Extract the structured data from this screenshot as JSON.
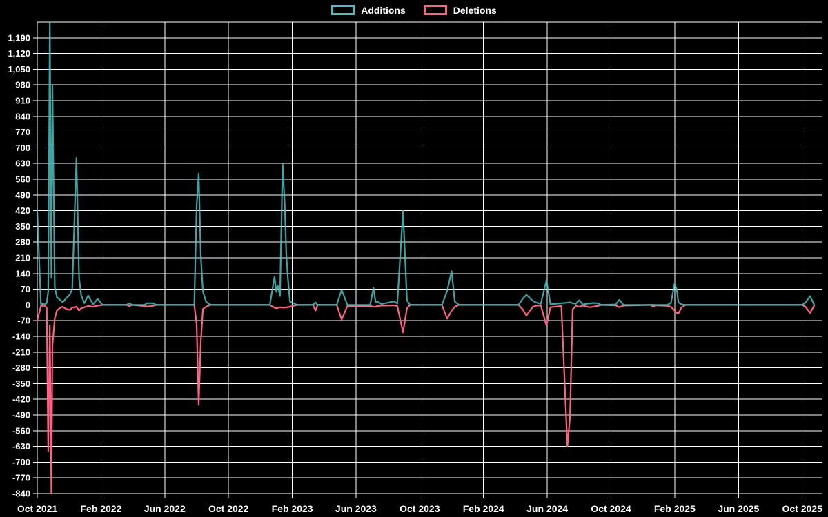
{
  "page": {
    "background": "#000000",
    "text_color": "#ffffff",
    "grid_color": "#ffffff"
  },
  "legend": {
    "items": [
      {
        "label": "Additions",
        "color": "#4bc0c0"
      },
      {
        "label": "Deletions",
        "color": "#ff6384"
      }
    ]
  },
  "chart_data": {
    "type": "line",
    "title": "",
    "xlabel": "",
    "ylabel": "",
    "legend_position": "top-center",
    "grid": true,
    "background": "#000000",
    "y_range": [
      -840,
      1260
    ],
    "y_step": 70,
    "y_ticks": [
      "1,190",
      "1,120",
      "1,050",
      "980",
      "910",
      "840",
      "770",
      "700",
      "630",
      "560",
      "490",
      "420",
      "350",
      "280",
      "210",
      "140",
      "70",
      "0",
      "-70",
      "-140",
      "-210",
      "-280",
      "-350",
      "-420",
      "-490",
      "-560",
      "-630",
      "-700",
      "-770",
      "-840"
    ],
    "x_ticks": [
      "Oct 2021",
      "Feb 2022",
      "Jun 2022",
      "Oct 2022",
      "Feb 2023",
      "Jun 2023",
      "Oct 2023",
      "Feb 2024",
      "Jun 2024",
      "Oct 2024",
      "Feb 2025",
      "Jun 2025",
      "Oct 2025"
    ],
    "series": [
      {
        "name": "Additions",
        "color": "#4bc0c0"
      },
      {
        "name": "Deletions",
        "color": "#ff6384"
      }
    ],
    "rows_format": [
      "date",
      "additions",
      "deletions"
    ],
    "rows": [
      [
        "2021-10-01",
        420,
        -70
      ],
      [
        "2021-10-08",
        5,
        -5
      ],
      [
        "2021-10-15",
        3,
        -3
      ],
      [
        "2021-10-19",
        8,
        -12
      ],
      [
        "2021-10-22",
        60,
        -650
      ],
      [
        "2021-10-25",
        1260,
        -90
      ],
      [
        "2021-10-28",
        120,
        -840
      ],
      [
        "2021-10-30",
        975,
        -180
      ],
      [
        "2021-11-04",
        80,
        -60
      ],
      [
        "2021-11-08",
        35,
        -25
      ],
      [
        "2021-11-13",
        25,
        -15
      ],
      [
        "2021-11-19",
        12,
        -8
      ],
      [
        "2021-11-26",
        30,
        -18
      ],
      [
        "2021-12-02",
        45,
        -22
      ],
      [
        "2021-12-07",
        70,
        -12
      ],
      [
        "2021-12-15",
        655,
        -8
      ],
      [
        "2021-12-20",
        120,
        -25
      ],
      [
        "2021-12-24",
        44,
        -15
      ],
      [
        "2021-12-30",
        8,
        -10
      ],
      [
        "2022-01-07",
        42,
        -5
      ],
      [
        "2022-01-16",
        3,
        -8
      ],
      [
        "2022-01-25",
        27,
        -3
      ],
      [
        "2022-02-04",
        0,
        0
      ],
      [
        "2022-03-19",
        0,
        0
      ],
      [
        "2022-03-25",
        7,
        -5
      ],
      [
        "2022-03-30",
        0,
        0
      ],
      [
        "2022-04-23",
        0,
        -5
      ],
      [
        "2022-04-28",
        8,
        -7
      ],
      [
        "2022-05-08",
        8,
        -5
      ],
      [
        "2022-05-15",
        0,
        0
      ],
      [
        "2022-07-27",
        0,
        0
      ],
      [
        "2022-08-01",
        440,
        -85
      ],
      [
        "2022-08-05",
        585,
        -445
      ],
      [
        "2022-08-09",
        220,
        -165
      ],
      [
        "2022-08-13",
        60,
        -18
      ],
      [
        "2022-08-19",
        15,
        -8
      ],
      [
        "2022-08-27",
        0,
        0
      ],
      [
        "2022-12-19",
        0,
        0
      ],
      [
        "2022-12-28",
        125,
        -12
      ],
      [
        "2023-01-01",
        58,
        -15
      ],
      [
        "2023-01-04",
        85,
        -13
      ],
      [
        "2023-01-08",
        40,
        -10
      ],
      [
        "2023-01-13",
        630,
        -12
      ],
      [
        "2023-01-17",
        450,
        -12
      ],
      [
        "2023-01-20",
        230,
        -10
      ],
      [
        "2023-01-23",
        120,
        -10
      ],
      [
        "2023-01-27",
        15,
        -8
      ],
      [
        "2023-02-02",
        10,
        -5
      ],
      [
        "2023-02-10",
        0,
        0
      ],
      [
        "2023-03-10",
        0,
        0
      ],
      [
        "2023-03-15",
        12,
        -25
      ],
      [
        "2023-03-19",
        0,
        0
      ],
      [
        "2023-04-25",
        0,
        0
      ],
      [
        "2023-05-04",
        68,
        -65
      ],
      [
        "2023-05-15",
        0,
        -5
      ],
      [
        "2023-06-28",
        0,
        -5
      ],
      [
        "2023-07-04",
        75,
        -8
      ],
      [
        "2023-07-08",
        12,
        -8
      ],
      [
        "2023-07-11",
        16,
        -5
      ],
      [
        "2023-07-19",
        4,
        -3
      ],
      [
        "2023-08-13",
        16,
        -2
      ],
      [
        "2023-08-19",
        6,
        -5
      ],
      [
        "2023-08-30",
        420,
        -122
      ],
      [
        "2023-09-07",
        20,
        -15
      ],
      [
        "2023-09-13",
        0,
        0
      ],
      [
        "2023-11-13",
        0,
        0
      ],
      [
        "2023-11-23",
        63,
        -61
      ],
      [
        "2023-12-01",
        150,
        -25
      ],
      [
        "2023-12-07",
        15,
        -8
      ],
      [
        "2023-12-15",
        0,
        0
      ],
      [
        "2024-04-07",
        0,
        0
      ],
      [
        "2024-04-15",
        28,
        -20
      ],
      [
        "2024-04-22",
        45,
        -48
      ],
      [
        "2024-04-27",
        35,
        -30
      ],
      [
        "2024-05-04",
        18,
        -8
      ],
      [
        "2024-05-11",
        10,
        -3
      ],
      [
        "2024-05-19",
        5,
        -2
      ],
      [
        "2024-05-30",
        110,
        -92
      ],
      [
        "2024-06-07",
        3,
        -10
      ],
      [
        "2024-06-28",
        8,
        -5
      ],
      [
        "2024-07-09",
        10,
        -630
      ],
      [
        "2024-07-14",
        12,
        -500
      ],
      [
        "2024-07-19",
        8,
        -20
      ],
      [
        "2024-07-25",
        5,
        -5
      ],
      [
        "2024-08-01",
        21,
        -8
      ],
      [
        "2024-08-08",
        2,
        -3
      ],
      [
        "2024-08-21",
        7,
        -10
      ],
      [
        "2024-08-28",
        9,
        -8
      ],
      [
        "2024-09-05",
        8,
        -5
      ],
      [
        "2024-09-13",
        0,
        0
      ],
      [
        "2024-10-10",
        2,
        -2
      ],
      [
        "2024-10-17",
        23,
        -10
      ],
      [
        "2024-10-25",
        0,
        -3
      ],
      [
        "2024-12-16",
        0,
        0
      ],
      [
        "2024-12-20",
        1,
        -7
      ],
      [
        "2024-12-27",
        0,
        -2
      ],
      [
        "2025-01-16",
        0,
        -4
      ],
      [
        "2025-01-24",
        8,
        -8
      ],
      [
        "2025-01-31",
        95,
        -25
      ],
      [
        "2025-02-05",
        68,
        -35
      ],
      [
        "2025-02-08",
        12,
        -38
      ],
      [
        "2025-02-14",
        2,
        -10
      ],
      [
        "2025-02-22",
        0,
        0
      ],
      [
        "2025-10-01",
        0,
        0
      ],
      [
        "2025-10-07",
        10,
        -8
      ],
      [
        "2025-10-16",
        39,
        -35
      ],
      [
        "2025-10-24",
        0,
        -2
      ]
    ]
  }
}
